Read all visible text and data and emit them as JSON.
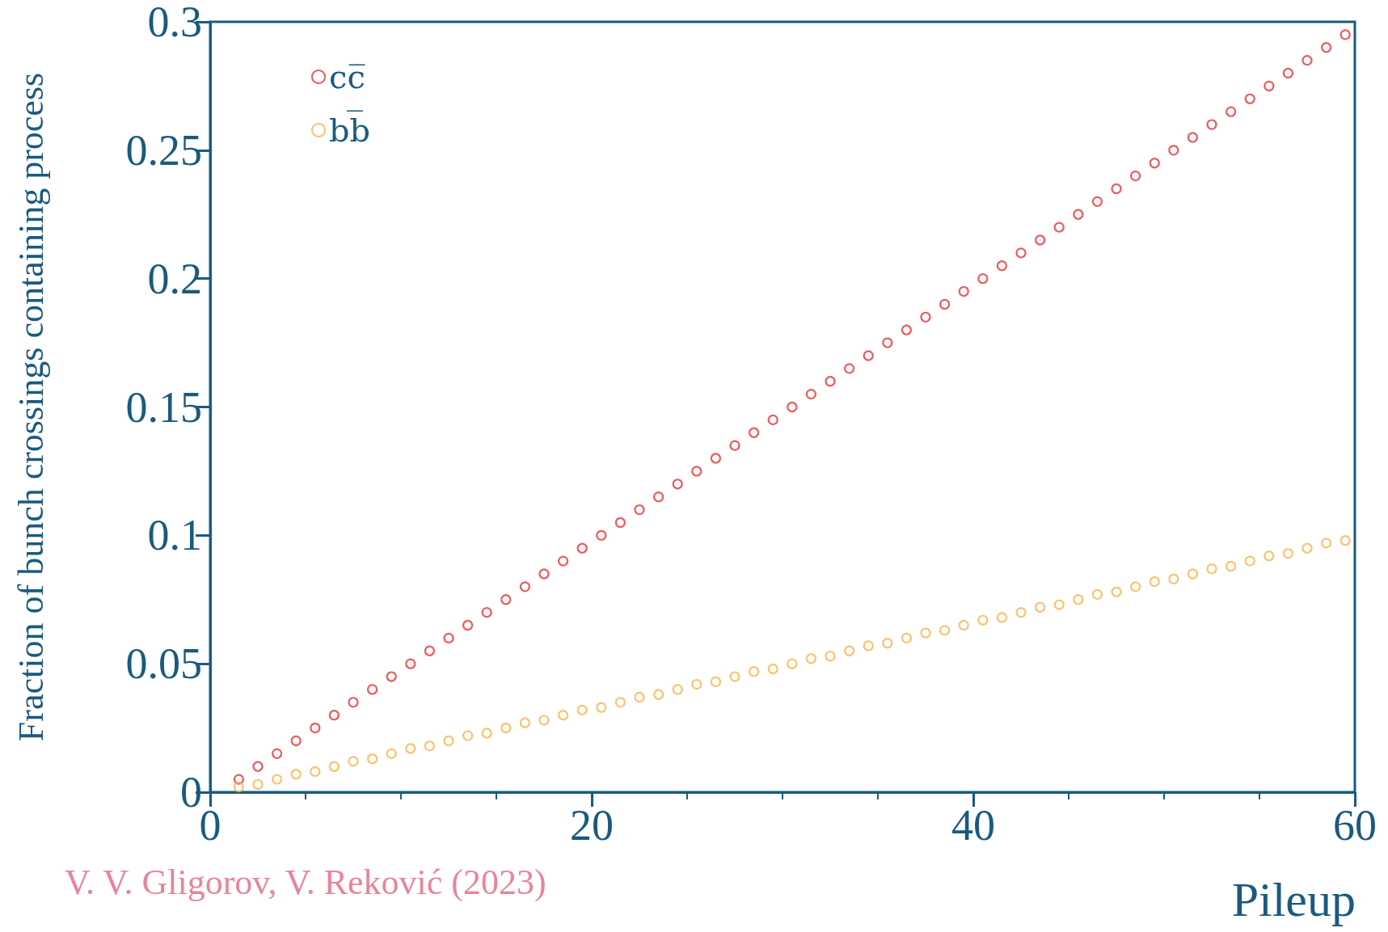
{
  "chart_data": {
    "type": "scatter",
    "xlabel": "Pileup",
    "ylabel": "Fraction of bunch crossings containing process",
    "annotations": [
      "V. V. Gligorov, V. Reković (2023)"
    ],
    "x": [
      1.5,
      2.5,
      3.5,
      4.5,
      5.5,
      6.5,
      7.5,
      8.5,
      9.5,
      10.5,
      11.5,
      12.5,
      13.5,
      14.5,
      15.5,
      16.5,
      17.5,
      18.5,
      19.5,
      20.5,
      21.5,
      22.5,
      23.5,
      24.5,
      25.5,
      26.5,
      27.5,
      28.5,
      29.5,
      30.5,
      31.5,
      32.5,
      33.5,
      34.5,
      35.5,
      36.5,
      37.5,
      38.5,
      39.5,
      40.5,
      41.5,
      42.5,
      43.5,
      44.5,
      45.5,
      46.5,
      47.5,
      48.5,
      49.5,
      50.5,
      51.5,
      52.5,
      53.5,
      54.5,
      55.5,
      56.5,
      57.5,
      58.5,
      59.5
    ],
    "series": [
      {
        "name": "cc̅",
        "color": "#e8333c",
        "values": [
          0.005,
          0.01,
          0.015,
          0.02,
          0.025,
          0.03,
          0.035,
          0.04,
          0.045,
          0.05,
          0.055,
          0.06,
          0.065,
          0.07,
          0.075,
          0.08,
          0.085,
          0.09,
          0.095,
          0.1,
          0.105,
          0.11,
          0.115,
          0.12,
          0.125,
          0.13,
          0.135,
          0.14,
          0.145,
          0.15,
          0.155,
          0.16,
          0.165,
          0.17,
          0.175,
          0.18,
          0.185,
          0.19,
          0.195,
          0.2,
          0.205,
          0.21,
          0.215,
          0.22,
          0.225,
          0.23,
          0.235,
          0.24,
          0.245,
          0.25,
          0.255,
          0.26,
          0.265,
          0.27,
          0.275,
          0.28,
          0.285,
          0.29,
          0.295
        ]
      },
      {
        "name": "bb̅",
        "color": "#f7b54d",
        "values": [
          0.002,
          0.003,
          0.005,
          0.007,
          0.008,
          0.01,
          0.012,
          0.013,
          0.015,
          0.017,
          0.018,
          0.02,
          0.022,
          0.023,
          0.025,
          0.027,
          0.028,
          0.03,
          0.032,
          0.033,
          0.035,
          0.037,
          0.038,
          0.04,
          0.042,
          0.043,
          0.045,
          0.047,
          0.048,
          0.05,
          0.052,
          0.053,
          0.055,
          0.057,
          0.058,
          0.06,
          0.062,
          0.063,
          0.065,
          0.067,
          0.068,
          0.07,
          0.072,
          0.073,
          0.075,
          0.077,
          0.078,
          0.08,
          0.082,
          0.083,
          0.085,
          0.087,
          0.088,
          0.09,
          0.092,
          0.093,
          0.095,
          0.097,
          0.098
        ]
      }
    ],
    "xlim": [
      0,
      60
    ],
    "xticks": [
      0,
      20,
      40,
      60
    ],
    "ylim": [
      0,
      0.3
    ],
    "yticks": [
      0,
      0.05,
      0.1,
      0.15,
      0.2,
      0.25,
      0.3
    ],
    "grid": false,
    "legend": "top left",
    "marker": "circle"
  }
}
